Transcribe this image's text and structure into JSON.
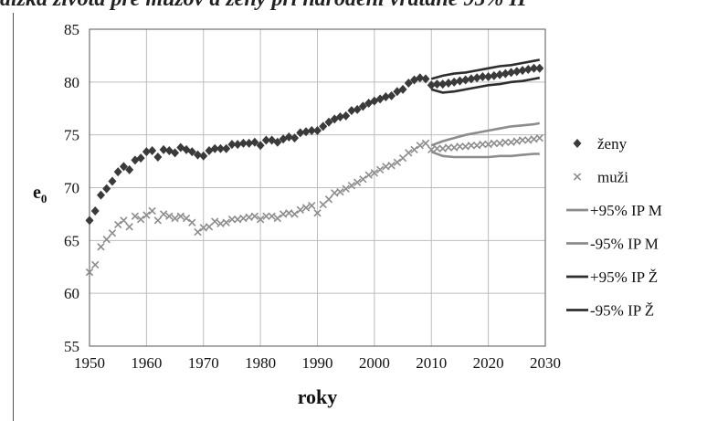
{
  "header": {
    "title": "dlžka života pre mužov a ženy pri narodení vrátane 95% IP"
  },
  "chart_data": {
    "type": "scatter",
    "xlabel": "roky",
    "ylabel": "e",
    "ylabel_sub": "0",
    "xlim": [
      1950,
      2030
    ],
    "ylim": [
      55,
      85
    ],
    "xticks": [
      "1950",
      "1960",
      "1970",
      "1980",
      "1990",
      "2000",
      "2010",
      "2020",
      "2030"
    ],
    "yticks": [
      "55",
      "60",
      "65",
      "70",
      "75",
      "80",
      "85"
    ],
    "grid": true,
    "legend_position": "right",
    "series": [
      {
        "name": "ženy",
        "marker": "diamond",
        "color": "#3a3a3a",
        "x": [
          1950,
          1951,
          1952,
          1953,
          1954,
          1955,
          1956,
          1957,
          1958,
          1959,
          1960,
          1961,
          1962,
          1963,
          1964,
          1965,
          1966,
          1967,
          1968,
          1969,
          1970,
          1971,
          1972,
          1973,
          1974,
          1975,
          1976,
          1977,
          1978,
          1979,
          1980,
          1981,
          1982,
          1983,
          1984,
          1985,
          1986,
          1987,
          1988,
          1989,
          1990,
          1991,
          1992,
          1993,
          1994,
          1995,
          1996,
          1997,
          1998,
          1999,
          2000,
          2001,
          2002,
          2003,
          2004,
          2005,
          2006,
          2007,
          2008,
          2009,
          2010,
          2011,
          2012,
          2013,
          2014,
          2015,
          2016,
          2017,
          2018,
          2019,
          2020,
          2021,
          2022,
          2023,
          2024,
          2025,
          2026,
          2027,
          2028,
          2029
        ],
        "y": [
          66.9,
          67.8,
          69.3,
          69.9,
          70.6,
          71.5,
          72.0,
          71.7,
          72.6,
          72.8,
          73.4,
          73.5,
          72.9,
          73.6,
          73.5,
          73.3,
          73.8,
          73.6,
          73.4,
          73.1,
          73.0,
          73.5,
          73.7,
          73.7,
          73.7,
          74.1,
          74.1,
          74.2,
          74.2,
          74.3,
          74.0,
          74.5,
          74.5,
          74.3,
          74.6,
          74.8,
          74.7,
          75.2,
          75.3,
          75.4,
          75.4,
          75.8,
          76.2,
          76.5,
          76.7,
          76.8,
          77.3,
          77.4,
          77.7,
          78.0,
          78.2,
          78.4,
          78.6,
          78.7,
          79.1,
          79.3,
          79.9,
          80.2,
          80.4,
          80.3,
          79.7,
          79.8,
          79.8,
          79.9,
          80.0,
          80.1,
          80.2,
          80.3,
          80.4,
          80.5,
          80.5,
          80.6,
          80.7,
          80.8,
          80.9,
          81.0,
          81.1,
          81.2,
          81.3,
          81.3
        ]
      },
      {
        "name": "muži",
        "marker": "x",
        "color": "#8c8c8c",
        "x": [
          1950,
          1951,
          1952,
          1953,
          1954,
          1955,
          1956,
          1957,
          1958,
          1959,
          1960,
          1961,
          1962,
          1963,
          1964,
          1965,
          1966,
          1967,
          1968,
          1969,
          1970,
          1971,
          1972,
          1973,
          1974,
          1975,
          1976,
          1977,
          1978,
          1979,
          1980,
          1981,
          1982,
          1983,
          1984,
          1985,
          1986,
          1987,
          1988,
          1989,
          1990,
          1991,
          1992,
          1993,
          1994,
          1995,
          1996,
          1997,
          1998,
          1999,
          2000,
          2001,
          2002,
          2003,
          2004,
          2005,
          2006,
          2007,
          2008,
          2009,
          2010,
          2011,
          2012,
          2013,
          2014,
          2015,
          2016,
          2017,
          2018,
          2019,
          2020,
          2021,
          2022,
          2023,
          2024,
          2025,
          2026,
          2027,
          2028,
          2029
        ],
        "y": [
          62.0,
          62.7,
          64.4,
          65.1,
          65.7,
          66.5,
          66.9,
          66.3,
          67.3,
          67.0,
          67.4,
          67.8,
          66.9,
          67.5,
          67.3,
          67.1,
          67.3,
          67.1,
          66.7,
          65.8,
          66.2,
          66.3,
          66.8,
          66.6,
          66.7,
          67.0,
          67.0,
          67.1,
          67.2,
          67.3,
          67.0,
          67.3,
          67.3,
          67.1,
          67.5,
          67.6,
          67.5,
          67.9,
          68.1,
          68.3,
          67.6,
          68.4,
          68.9,
          69.5,
          69.6,
          69.9,
          70.2,
          70.5,
          70.8,
          71.2,
          71.4,
          71.7,
          72.0,
          72.1,
          72.4,
          72.8,
          73.3,
          73.6,
          74.0,
          74.2,
          73.6,
          73.7,
          73.7,
          73.8,
          73.8,
          73.9,
          73.9,
          74.0,
          74.0,
          74.1,
          74.1,
          74.2,
          74.2,
          74.3,
          74.3,
          74.4,
          74.5,
          74.5,
          74.6,
          74.7
        ]
      },
      {
        "name": "+95% IP M",
        "marker": "line",
        "color": "#8c8c8c",
        "x": [
          2010,
          2012,
          2014,
          2016,
          2018,
          2020,
          2022,
          2024,
          2026,
          2028,
          2029
        ],
        "y": [
          74.0,
          74.4,
          74.7,
          75.0,
          75.2,
          75.4,
          75.6,
          75.8,
          75.9,
          76.0,
          76.1
        ]
      },
      {
        "name": "-95% IP M",
        "marker": "line",
        "color": "#8c8c8c",
        "x": [
          2010,
          2012,
          2014,
          2016,
          2018,
          2020,
          2022,
          2024,
          2026,
          2028,
          2029
        ],
        "y": [
          73.4,
          73.0,
          72.9,
          72.9,
          72.9,
          72.9,
          73.0,
          73.0,
          73.1,
          73.2,
          73.2
        ]
      },
      {
        "name": "+95% IP Ž",
        "marker": "line",
        "color": "#2e2e2e",
        "x": [
          2010,
          2012,
          2014,
          2016,
          2018,
          2020,
          2022,
          2024,
          2026,
          2028,
          2029
        ],
        "y": [
          80.3,
          80.6,
          80.8,
          80.9,
          81.1,
          81.3,
          81.5,
          81.6,
          81.8,
          82.0,
          82.1
        ]
      },
      {
        "name": "-95% IP Ž",
        "marker": "line",
        "color": "#2e2e2e",
        "x": [
          2010,
          2012,
          2014,
          2016,
          2018,
          2020,
          2022,
          2024,
          2026,
          2028,
          2029
        ],
        "y": [
          79.3,
          79.0,
          79.1,
          79.3,
          79.5,
          79.7,
          79.8,
          80.0,
          80.1,
          80.3,
          80.4
        ]
      }
    ]
  }
}
